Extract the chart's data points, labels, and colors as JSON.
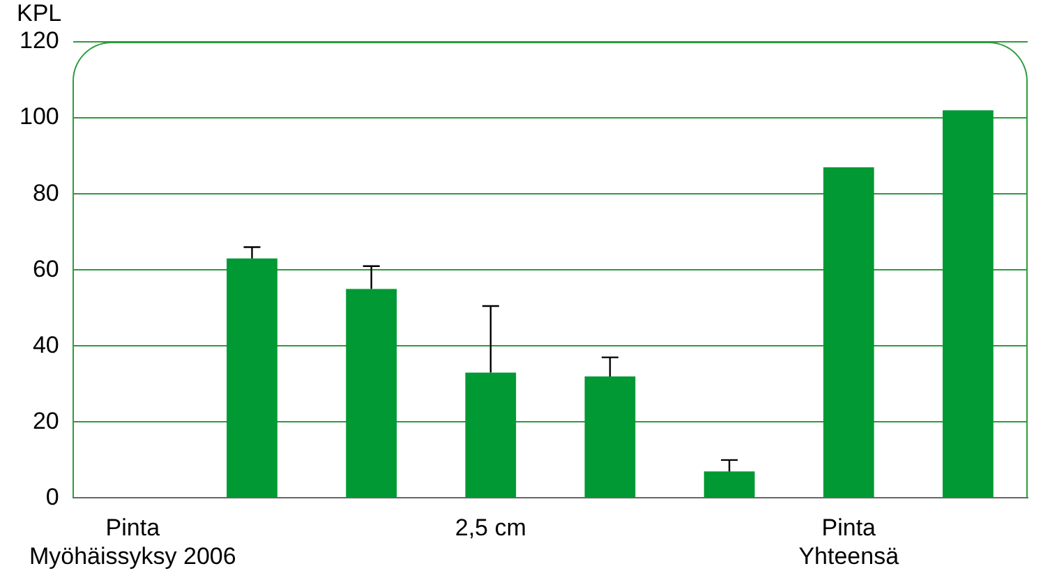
{
  "chart_data": {
    "type": "bar",
    "ylabel": "KPL",
    "categories": [
      "Pinta\nMyöhäissyksy 2006",
      null,
      null,
      "2,5 cm",
      null,
      null,
      "Pinta\nYhteensä",
      null
    ],
    "values": [
      0,
      63,
      55,
      33,
      32,
      7,
      87,
      102
    ],
    "errors": [
      null,
      [
        63,
        66
      ],
      [
        55,
        61
      ],
      [
        33,
        50.5
      ],
      [
        32,
        37
      ],
      [
        7,
        10
      ],
      null,
      null
    ],
    "color": "#009933",
    "ylim": [
      0,
      120
    ],
    "yticks": [
      0,
      20,
      40,
      60,
      80,
      100,
      120
    ],
    "grid": "y",
    "legend": false
  }
}
